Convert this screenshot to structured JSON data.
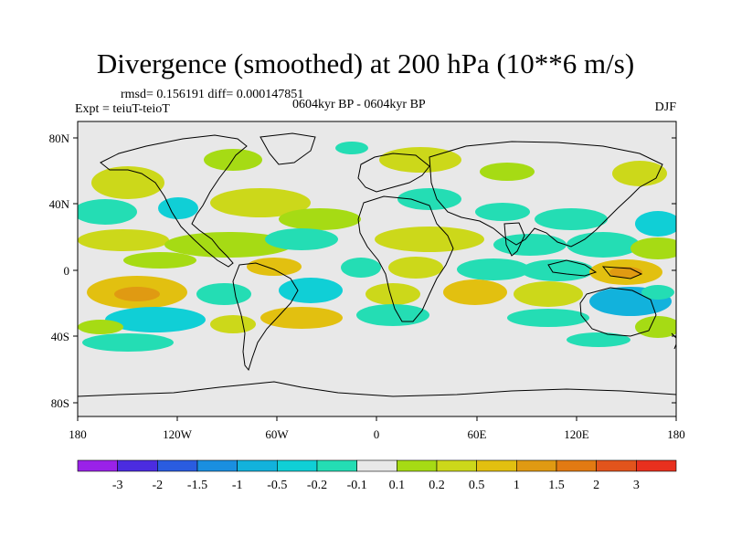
{
  "title": "Divergence (smoothed) at 200 hPa (10**6 m/s)",
  "stats": "rmsd= 0.156191 diff= 0.000147851",
  "experiment": "Expt = teiuT-teioT",
  "period": "0604kyr BP - 0604kyr BP",
  "season": "DJF",
  "axes": {
    "lat_labels": [
      "80N",
      "40N",
      "0",
      "40S",
      "80S"
    ],
    "lon_labels": [
      "180",
      "120W",
      "60W",
      "0",
      "60E",
      "120E",
      "180"
    ]
  },
  "colorbar": {
    "labels": [
      "-3",
      "-2",
      "-1.5",
      "-1",
      "-0.5",
      "-0.2",
      "-0.1",
      "0.1",
      "0.2",
      "0.5",
      "1",
      "1.5",
      "2",
      "3"
    ],
    "colors": [
      "#9A22E8",
      "#4B2CE0",
      "#2A5CE0",
      "#1A8FE0",
      "#12B2DC",
      "#10CFD6",
      "#24DDB4",
      "#E8E8E8",
      "#A6DB14",
      "#CCD81A",
      "#E2C010",
      "#E09A12",
      "#E27A12",
      "#E2541C",
      "#E8301E"
    ]
  },
  "colors": {
    "land_fill": "#E8E8E8",
    "coast": "#000000",
    "positive_weak": "#A6DB14",
    "positive_mid": "#CCD81A",
    "positive_strong": "#E2C010",
    "negative_weak": "#24DDB4",
    "negative_mid": "#10CFD6",
    "negative_strong": "#12B2DC"
  }
}
